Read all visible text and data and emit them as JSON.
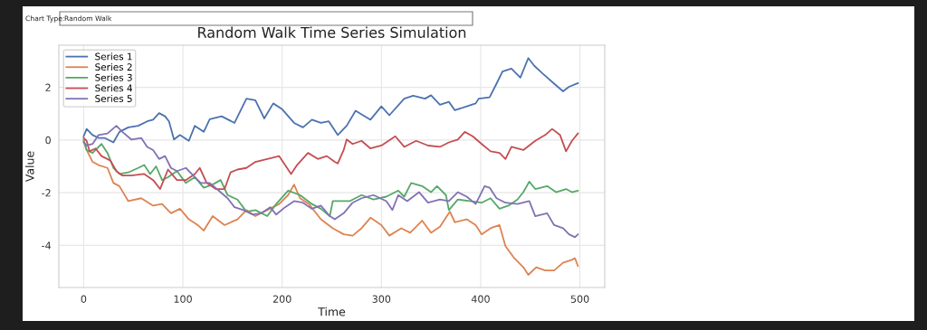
{
  "chart_data": {
    "type": "line",
    "title": "Random Walk Time Series Simulation",
    "xlabel": "Time",
    "ylabel": "Value",
    "annotations": [
      "Chart Type:",
      "Random Walk"
    ],
    "xlim": [
      -25,
      525
    ],
    "ylim": [
      -5.6,
      3.6
    ],
    "xticks": [
      0,
      100,
      200,
      300,
      400,
      500
    ],
    "yticks": [
      -4,
      -2,
      0,
      2
    ],
    "grid": true,
    "legend": "top left",
    "line_style": "solid",
    "marker": "none",
    "series": [
      {
        "name": "Series 1",
        "color": "#4c72b0",
        "x": [
          0,
          3,
          9,
          15,
          21,
          30,
          36,
          45,
          55,
          64,
          70,
          76,
          82,
          86,
          91,
          97,
          106,
          112,
          121,
          127,
          139,
          152,
          164,
          173,
          182,
          191,
          200,
          212,
          221,
          230,
          239,
          247,
          256,
          265,
          274,
          289,
          300,
          308,
          323,
          332,
          344,
          350,
          359,
          368,
          374,
          386,
          395,
          398,
          409,
          416,
          422,
          431,
          440,
          448,
          454,
          462,
          474,
          483,
          489,
          498
        ],
        "values": [
          0.14,
          0.42,
          0.19,
          0.08,
          0.08,
          -0.09,
          0.31,
          0.48,
          0.54,
          0.71,
          0.77,
          1.02,
          0.9,
          0.71,
          0.02,
          0.19,
          -0.03,
          0.54,
          0.31,
          0.79,
          0.9,
          0.65,
          1.57,
          1.51,
          0.82,
          1.39,
          1.17,
          0.65,
          0.48,
          0.77,
          0.65,
          0.71,
          0.19,
          0.54,
          1.11,
          0.77,
          1.28,
          0.94,
          1.57,
          1.68,
          1.57,
          1.7,
          1.34,
          1.45,
          1.13,
          1.28,
          1.39,
          1.57,
          1.62,
          2.14,
          2.6,
          2.71,
          2.37,
          3.11,
          2.82,
          2.54,
          2.14,
          1.85,
          2.02,
          2.16
        ]
      },
      {
        "name": "Series 2",
        "color": "#dd8452",
        "x": [
          0,
          3,
          9,
          15,
          24,
          30,
          36,
          45,
          58,
          70,
          79,
          88,
          97,
          106,
          115,
          121,
          130,
          142,
          155,
          164,
          173,
          185,
          197,
          206,
          212,
          218,
          227,
          239,
          251,
          262,
          271,
          280,
          289,
          300,
          308,
          320,
          329,
          341,
          350,
          359,
          369,
          374,
          386,
          395,
          401,
          410,
          419,
          425,
          434,
          443,
          448,
          456,
          465,
          474,
          483,
          492,
          495,
          498
        ],
        "values": [
          0.02,
          -0.38,
          -0.83,
          -0.95,
          -1.06,
          -1.63,
          -1.75,
          -2.32,
          -2.21,
          -2.49,
          -2.43,
          -2.78,
          -2.61,
          -3.01,
          -3.23,
          -3.44,
          -2.89,
          -3.23,
          -3.01,
          -2.66,
          -2.89,
          -2.66,
          -2.43,
          -2.09,
          -1.69,
          -2.21,
          -2.43,
          -3.01,
          -3.35,
          -3.58,
          -3.63,
          -3.35,
          -2.95,
          -3.23,
          -3.63,
          -3.35,
          -3.52,
          -3.06,
          -3.52,
          -3.29,
          -2.72,
          -3.12,
          -3.01,
          -3.23,
          -3.58,
          -3.35,
          -3.23,
          -4.03,
          -4.49,
          -4.83,
          -5.12,
          -4.83,
          -4.95,
          -4.95,
          -4.66,
          -4.55,
          -4.49,
          -4.78
        ]
      },
      {
        "name": "Series 3",
        "color": "#55a868",
        "x": [
          0,
          3,
          9,
          18,
          24,
          30,
          36,
          45,
          55,
          61,
          67,
          73,
          79,
          85,
          94,
          103,
          112,
          121,
          130,
          138,
          145,
          155,
          164,
          173,
          185,
          194,
          206,
          218,
          230,
          239,
          248,
          251,
          256,
          268,
          280,
          292,
          305,
          317,
          323,
          330,
          341,
          350,
          356,
          365,
          368,
          377,
          389,
          401,
          410,
          419,
          428,
          437,
          443,
          449,
          455,
          467,
          476,
          486,
          492,
          498
        ],
        "values": [
          -0.03,
          -0.38,
          -0.49,
          -0.15,
          -0.49,
          -1.06,
          -1.29,
          -1.23,
          -1.06,
          -0.95,
          -1.29,
          -1.0,
          -1.52,
          -1.41,
          -1.18,
          -1.63,
          -1.41,
          -1.81,
          -1.69,
          -1.52,
          -2.09,
          -2.26,
          -2.72,
          -2.66,
          -2.89,
          -2.43,
          -1.92,
          -2.09,
          -2.43,
          -2.61,
          -2.89,
          -2.32,
          -2.32,
          -2.32,
          -2.09,
          -2.26,
          -2.15,
          -1.92,
          -2.15,
          -1.63,
          -1.75,
          -1.98,
          -1.75,
          -2.09,
          -2.66,
          -2.26,
          -2.32,
          -2.38,
          -2.21,
          -2.61,
          -2.49,
          -2.26,
          -1.98,
          -1.58,
          -1.86,
          -1.75,
          -1.98,
          -1.86,
          -1.98,
          -1.92
        ]
      },
      {
        "name": "Series 4",
        "color": "#c44e52",
        "x": [
          0,
          3,
          6,
          12,
          18,
          27,
          33,
          39,
          48,
          61,
          70,
          77,
          85,
          94,
          103,
          112,
          117,
          124,
          133,
          142,
          148,
          155,
          164,
          173,
          185,
          197,
          209,
          215,
          226,
          236,
          245,
          253,
          256,
          262,
          265,
          271,
          280,
          289,
          300,
          314,
          323,
          335,
          347,
          359,
          368,
          377,
          384,
          392,
          401,
          410,
          419,
          425,
          431,
          443,
          455,
          465,
          472,
          480,
          486,
          492,
          498
        ],
        "values": [
          0.08,
          -0.03,
          -0.43,
          -0.32,
          -0.61,
          -0.78,
          -1.18,
          -1.35,
          -1.35,
          -1.29,
          -1.52,
          -1.86,
          -1.12,
          -1.52,
          -1.52,
          -1.29,
          -1.06,
          -1.63,
          -1.86,
          -1.86,
          -1.23,
          -1.12,
          -1.06,
          -0.83,
          -0.72,
          -0.61,
          -1.29,
          -0.95,
          -0.49,
          -0.72,
          -0.61,
          -0.83,
          -0.89,
          -0.38,
          0.02,
          -0.15,
          -0.03,
          -0.32,
          -0.21,
          0.14,
          -0.26,
          -0.03,
          -0.21,
          -0.26,
          -0.09,
          0.02,
          0.31,
          0.14,
          -0.15,
          -0.43,
          -0.49,
          -0.72,
          -0.26,
          -0.38,
          -0.03,
          0.19,
          0.42,
          0.19,
          -0.43,
          -0.03,
          0.25
        ]
      },
      {
        "name": "Series 5",
        "color": "#8172b3",
        "x": [
          0,
          3,
          9,
          15,
          24,
          33,
          39,
          48,
          58,
          64,
          70,
          76,
          82,
          88,
          94,
          103,
          112,
          118,
          127,
          136,
          145,
          152,
          161,
          170,
          179,
          188,
          194,
          203,
          212,
          221,
          230,
          239,
          248,
          253,
          262,
          271,
          280,
          292,
          305,
          311,
          317,
          326,
          338,
          347,
          359,
          368,
          377,
          386,
          395,
          404,
          409,
          416,
          425,
          437,
          449,
          455,
          467,
          474,
          483,
          489,
          495,
          498
        ],
        "values": [
          -0.09,
          -0.21,
          -0.15,
          0.19,
          0.25,
          0.54,
          0.31,
          0.02,
          0.08,
          -0.26,
          -0.38,
          -0.72,
          -0.61,
          -1.06,
          -1.18,
          -1.06,
          -1.41,
          -1.63,
          -1.63,
          -1.92,
          -2.21,
          -2.55,
          -2.66,
          -2.83,
          -2.78,
          -2.55,
          -2.83,
          -2.55,
          -2.32,
          -2.38,
          -2.61,
          -2.49,
          -2.89,
          -3.01,
          -2.78,
          -2.38,
          -2.21,
          -2.09,
          -2.32,
          -2.66,
          -2.09,
          -2.32,
          -1.98,
          -2.38,
          -2.26,
          -2.32,
          -1.98,
          -2.15,
          -2.43,
          -1.75,
          -1.81,
          -2.21,
          -2.38,
          -2.43,
          -2.32,
          -2.89,
          -2.78,
          -3.23,
          -3.35,
          -3.58,
          -3.69,
          -3.58
        ]
      }
    ]
  }
}
